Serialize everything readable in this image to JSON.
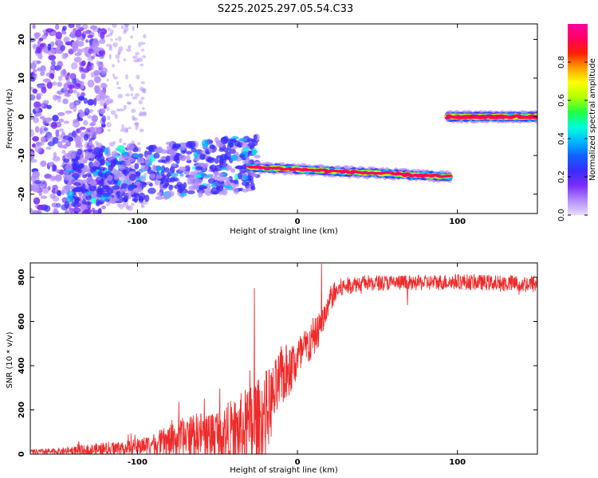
{
  "title": "S225.2025.297.05.54.C33",
  "chart_data": [
    {
      "type": "heatmap",
      "name": "spectrogram",
      "xlabel": "Height of straight line (km)",
      "ylabel": "Frequency (Hz)",
      "xlim": [
        -167,
        150
      ],
      "ylim": [
        -25,
        24
      ],
      "xticks": [
        -100,
        0,
        100
      ],
      "yticks": [
        -20,
        -10,
        0,
        10,
        20
      ],
      "grid": false,
      "colorbar": {
        "label": "Normalized spectral amplitude",
        "range": [
          0,
          1
        ],
        "ticks": [
          "0.0",
          "0.2",
          "0.4",
          "0.6",
          "0.8"
        ],
        "colors": [
          "#e8dcff",
          "#b28cff",
          "#7a2dff",
          "#3b2bff",
          "#1060ff",
          "#00b8ff",
          "#00ffd8",
          "#20ff40",
          "#b0ff00",
          "#ffff00",
          "#ffa000",
          "#ff2000",
          "#ff0060",
          "#ff00a0"
        ]
      },
      "features": [
        {
          "label": "diffuse scatter",
          "x_range": [
            -167,
            -120
          ],
          "freq_range": [
            -25,
            24
          ],
          "amplitude": 0.2
        },
        {
          "label": "dense cluster",
          "x_range": [
            -145,
            -25
          ],
          "freq_range": [
            -22,
            -6
          ],
          "amplitude": 0.35
        },
        {
          "label": "tonal line",
          "x_range": [
            -30,
            95
          ],
          "freq_start": -13,
          "freq_end": -15.5,
          "amplitude": 0.95
        },
        {
          "label": "tonal line",
          "x_range": [
            94,
            150
          ],
          "freq": 0,
          "amplitude": 0.95
        }
      ]
    },
    {
      "type": "line",
      "name": "snr",
      "xlabel": "Height of straight line (km)",
      "ylabel": "SNR (10 * v/v)",
      "xlim": [
        -167,
        150
      ],
      "ylim": [
        0,
        865
      ],
      "xticks": [
        -100,
        0,
        100
      ],
      "yticks": [
        0,
        200,
        400,
        600,
        800
      ],
      "grid": false,
      "series": [
        {
          "name": "SNR",
          "color": "#ee2b2b",
          "x": [
            -167,
            -150,
            -130,
            -115,
            -100,
            -90,
            -80,
            -70,
            -60,
            -50,
            -45,
            -40,
            -35,
            -30,
            -27,
            -25,
            -20,
            -15,
            -10,
            -5,
            0,
            5,
            10,
            15,
            20,
            25,
            30,
            40,
            60,
            80,
            100,
            120,
            140,
            150
          ],
          "y": [
            15,
            20,
            30,
            40,
            50,
            70,
            90,
            120,
            140,
            150,
            160,
            170,
            190,
            210,
            250,
            230,
            280,
            330,
            420,
            440,
            480,
            520,
            560,
            620,
            700,
            740,
            760,
            775,
            775,
            775,
            780,
            775,
            770,
            770
          ],
          "spread": [
            15,
            20,
            40,
            50,
            50,
            70,
            110,
            140,
            150,
            180,
            200,
            220,
            250,
            300,
            350,
            300,
            280,
            220,
            200,
            180,
            150,
            140,
            120,
            100,
            60,
            50,
            40,
            35,
            35,
            35,
            35,
            35,
            40,
            40
          ],
          "peaks": [
            {
              "x": -27,
              "y": 750
            },
            {
              "x": 15,
              "y": 860
            },
            {
              "x": -93,
              "y": 70
            }
          ]
        }
      ]
    }
  ]
}
